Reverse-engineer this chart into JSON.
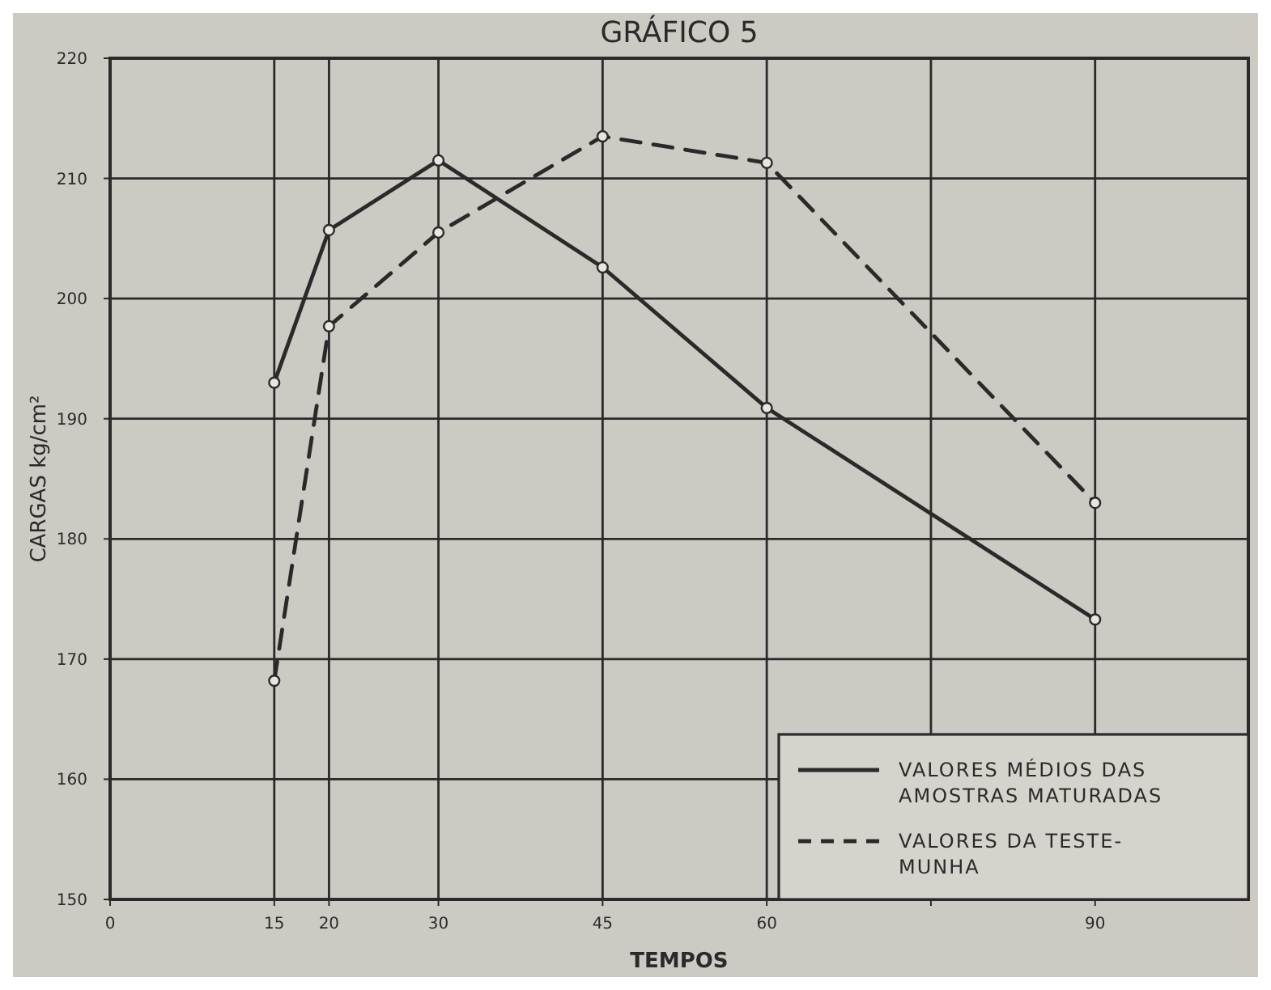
{
  "chart_data": {
    "type": "line",
    "title": "GRÁFICO 5",
    "xlabel": "TEMPOS",
    "ylabel": "CARGAS kg/cm²",
    "x": [
      15,
      20,
      30,
      45,
      60,
      90
    ],
    "series": [
      {
        "name": "VALORES MÉDIOS DAS AMOSTRAS MATURADAS",
        "color": "#2a2a2a",
        "line_style": "solid",
        "values": [
          193,
          205.7,
          211.5,
          202.6,
          190.9,
          173.3
        ]
      },
      {
        "name": "VALORES DA TESTE-MUNHA",
        "color": "#2a2a2a",
        "line_style": "dashed",
        "values": [
          168.2,
          197.7,
          205.5,
          213.5,
          211.3,
          183
        ]
      }
    ],
    "xlim": [
      0,
      104
    ],
    "xticks": [
      0,
      15,
      20,
      30,
      45,
      60,
      {
        "value": 75,
        "label": null
      },
      90
    ],
    "ylim": [
      150,
      220
    ],
    "yticks": [
      150,
      160,
      170,
      180,
      190,
      200,
      210,
      220
    ],
    "grid": true,
    "legend": "bottom right",
    "marker": "circle"
  }
}
